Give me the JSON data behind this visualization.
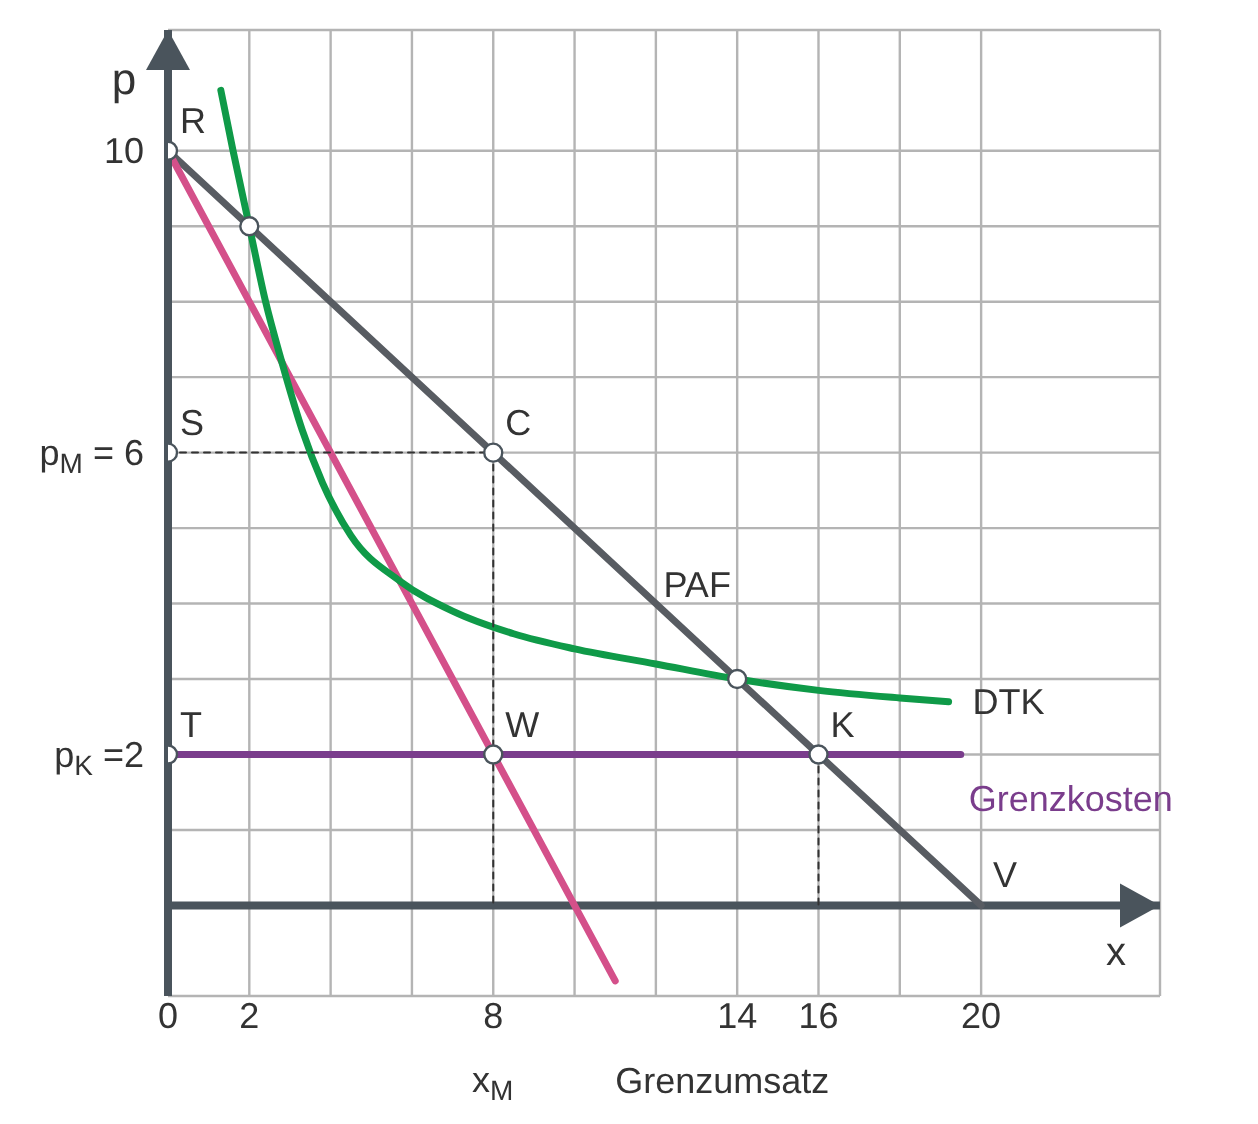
{
  "chart_data": {
    "type": "line",
    "xlabel": "x",
    "ylabel": "p",
    "xlim": [
      0,
      24.4
    ],
    "ylim": [
      -1.2,
      11.6
    ],
    "xticks": [
      0,
      2,
      {
        "value": 4,
        "label": null
      },
      {
        "value": 6,
        "label": null
      },
      8,
      {
        "value": 10,
        "label": null
      },
      {
        "value": 12,
        "label": null
      },
      14,
      16,
      {
        "value": 18,
        "label": null
      },
      20
    ],
    "yticks": [
      {
        "value": 1,
        "label": null
      },
      {
        "value": 2,
        "label": "p$_{K}$ =2"
      },
      {
        "value": 3,
        "label": null
      },
      {
        "value": 4,
        "label": null
      },
      {
        "value": 5,
        "label": null
      },
      {
        "value": 6,
        "label": "p$_{M}$ = 6"
      },
      {
        "value": 7,
        "label": null
      },
      {
        "value": 8,
        "label": null
      },
      {
        "value": 9,
        "label": null
      },
      10
    ],
    "grid": true,
    "line_style": "solid",
    "marker": "none",
    "series": [
      {
        "name": "PAF",
        "color": "#585c62",
        "x": [
          0,
          20
        ],
        "values": [
          10,
          0
        ]
      },
      {
        "name": "Grenzumsatz",
        "color": "#d4508a",
        "x": [
          0,
          11
        ],
        "values": [
          10,
          -1
        ]
      },
      {
        "name": "Grenzkosten",
        "color": "#7a3d8c",
        "x": [
          0,
          19.5
        ],
        "values": [
          2,
          2
        ]
      },
      {
        "name": "DTK",
        "color": "#0f9a48",
        "x": [
          1.3,
          1.6,
          2,
          2.4,
          2.8,
          3.3,
          3.8,
          4.5,
          5.7,
          7,
          8.5,
          10,
          12,
          14,
          16,
          18,
          19.2
        ],
        "values": [
          10.8,
          10,
          9,
          8,
          7.2,
          6.3,
          5.6,
          4.9,
          4.3,
          3.9,
          3.6,
          3.4,
          3.2,
          3,
          2.85,
          2.75,
          2.7
        ]
      },
      {
        "color": "#333333",
        "x": [
          0,
          8
        ],
        "values": [
          6,
          6
        ],
        "line_style": "dotted"
      },
      {
        "color": "#333333",
        "x": [
          8,
          8
        ],
        "values": [
          6,
          0
        ],
        "line_style": "dotted"
      },
      {
        "color": "#333333",
        "x": [
          16,
          16
        ],
        "values": [
          2,
          0
        ],
        "line_style": "dotted"
      },
      {
        "type": "scatter",
        "color": "#ffffff",
        "marker": "circle",
        "x": [
          0,
          2,
          0,
          8,
          0,
          8,
          16,
          14
        ],
        "values": [
          10,
          9,
          6,
          6,
          2,
          2,
          2,
          3
        ]
      }
    ],
    "annotations": [
      {
        "text": "R",
        "x": 0,
        "y": 10
      },
      {
        "text": "S",
        "x": 0,
        "y": 6
      },
      {
        "text": "T",
        "x": 0,
        "y": 2
      },
      {
        "text": "C",
        "x": 8,
        "y": 6
      },
      {
        "text": "W",
        "x": 8,
        "y": 2
      },
      {
        "text": "K",
        "x": 16,
        "y": 2
      },
      {
        "text": "V",
        "x": 20,
        "y": 0
      },
      "x$_{M}$"
    ]
  }
}
